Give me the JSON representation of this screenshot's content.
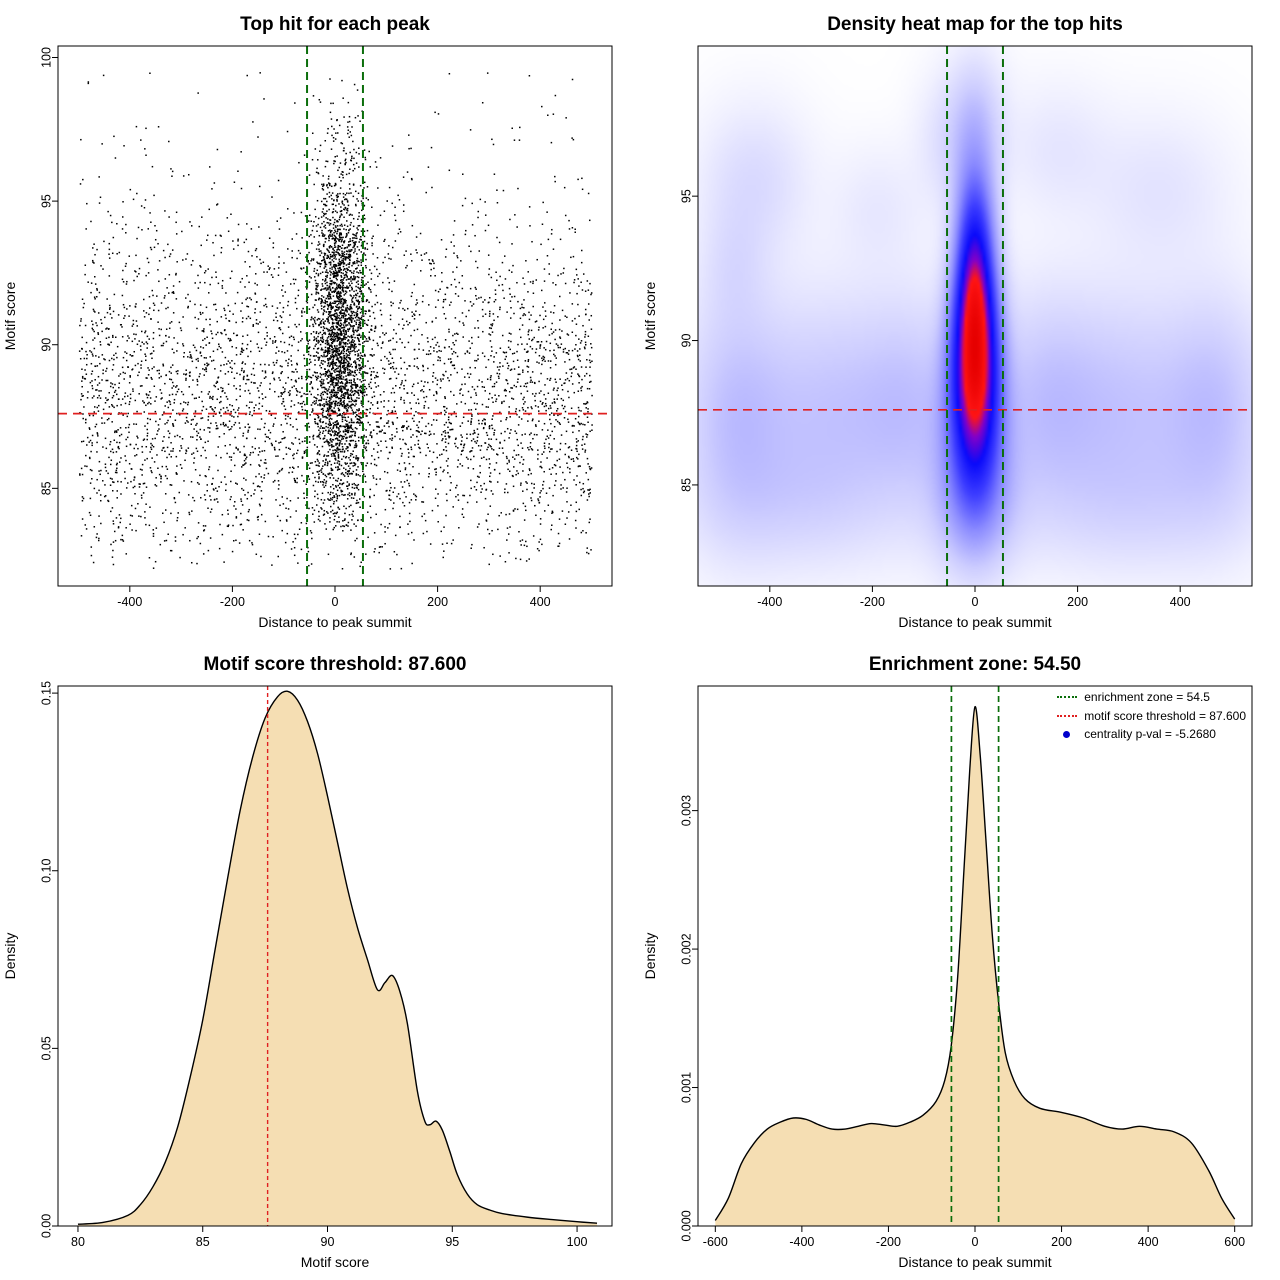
{
  "figure": {
    "background": "#ffffff",
    "score_threshold": 87.6,
    "enrichment_zone": 54.5,
    "centrality_pval": "-5.2680"
  },
  "chart_data": [
    {
      "type": "scatter",
      "title": "Top hit for each peak",
      "xlabel": "Distance to peak summit",
      "ylabel": "Motif score",
      "xlim": [
        -540,
        540
      ],
      "ylim": [
        81.6,
        100.4
      ],
      "xticks": [
        -400,
        -200,
        0,
        200,
        400
      ],
      "yticks": [
        85,
        90,
        95,
        100
      ],
      "point_color": "#000000",
      "threshold_line": {
        "y": 87.6,
        "color": "#e02020",
        "dash": [
          9,
          6
        ],
        "width": 1.8
      },
      "zone_lines": {
        "x": [
          -54.5,
          54.5
        ],
        "color": "#0b6e0b",
        "dash": [
          8,
          5
        ],
        "width": 2
      },
      "points": {
        "seed": 1234,
        "x_range": [
          -500,
          500
        ],
        "background": {
          "n": 4300,
          "y_mean": 88.2,
          "y_sd": 3.1,
          "y_uniform_frac": 0.07,
          "y_min": 82.2,
          "y_max": 99.7
        },
        "cluster": {
          "n": 2700,
          "x_mean": 8,
          "x_sd": 27,
          "y_mean": 90.2,
          "y_sd": 3.1,
          "y_min": 83.6,
          "y_max": 99.5
        }
      }
    },
    {
      "type": "heatmap",
      "title": "Density heat map for the top hits",
      "xlabel": "Distance to peak summit",
      "ylabel": "Motif score",
      "xlim": [
        -540,
        540
      ],
      "ylim": [
        81.5,
        100.2
      ],
      "xticks": [
        -400,
        -200,
        0,
        200,
        400
      ],
      "yticks": [
        85,
        90,
        95
      ],
      "threshold_line": {
        "y": 87.6,
        "color": "#e02020",
        "dash": [
          9,
          6
        ],
        "width": 1.6
      },
      "zone_lines": {
        "x": [
          -54.5,
          54.5
        ],
        "color": "#0b6e0b",
        "dash": [
          8,
          5
        ],
        "width": 2
      },
      "colormap": [
        [
          0.0,
          "#ffffff"
        ],
        [
          0.06,
          "#f0f0ff"
        ],
        [
          0.18,
          "#cdcdff"
        ],
        [
          0.35,
          "#8c8cff"
        ],
        [
          0.52,
          "#3c3cff"
        ],
        [
          0.66,
          "#0a0afa"
        ],
        [
          0.78,
          "#8200c8"
        ],
        [
          0.86,
          "#ff1414"
        ],
        [
          1.0,
          "#e60000"
        ]
      ],
      "kernels": [
        {
          "x": 0,
          "y": 89.3,
          "sx": 30,
          "sy": 2.4,
          "w": 1.1
        },
        {
          "x": 0,
          "y": 90.8,
          "sx": 27,
          "sy": 2.0,
          "w": 0.9
        },
        {
          "x": 0,
          "y": 92.4,
          "sx": 22,
          "sy": 1.5,
          "w": 0.6
        },
        {
          "x": 0,
          "y": 88.2,
          "sx": 34,
          "sy": 2.2,
          "w": 0.7
        },
        {
          "x": 0,
          "y": 86.3,
          "sx": 42,
          "sy": 2.0,
          "w": 0.4
        },
        {
          "x": 0,
          "y": 84.3,
          "sx": 55,
          "sy": 1.6,
          "w": 0.28
        },
        {
          "x": 0,
          "y": 94.3,
          "sx": 24,
          "sy": 1.3,
          "w": 0.35
        },
        {
          "x": 0,
          "y": 96.0,
          "sx": 30,
          "sy": 1.8,
          "w": 0.25
        },
        {
          "x": 0,
          "y": 97.8,
          "sx": 40,
          "sy": 1.5,
          "w": 0.12
        },
        {
          "x": -120,
          "y": 87.7,
          "sx": 70,
          "sy": 2.5,
          "w": 0.18
        },
        {
          "x": 130,
          "y": 87.8,
          "sx": 70,
          "sy": 2.5,
          "w": 0.18
        },
        {
          "x": -280,
          "y": 87.6,
          "sx": 110,
          "sy": 2.6,
          "w": 0.22
        },
        {
          "x": 280,
          "y": 87.7,
          "sx": 110,
          "sy": 2.6,
          "w": 0.22
        },
        {
          "x": -470,
          "y": 87.4,
          "sx": 70,
          "sy": 2.8,
          "w": 0.22
        },
        {
          "x": 470,
          "y": 87.6,
          "sx": 70,
          "sy": 2.6,
          "w": 0.22
        },
        {
          "x": -350,
          "y": 84.3,
          "sx": 130,
          "sy": 1.5,
          "w": 0.1
        },
        {
          "x": 320,
          "y": 84.2,
          "sx": 150,
          "sy": 1.5,
          "w": 0.1
        },
        {
          "x": -430,
          "y": 95.5,
          "sx": 70,
          "sy": 1.7,
          "w": 0.12
        },
        {
          "x": -470,
          "y": 92.6,
          "sx": 45,
          "sy": 1.4,
          "w": 0.08
        },
        {
          "x": 360,
          "y": 95.2,
          "sx": 90,
          "sy": 1.7,
          "w": 0.08
        },
        {
          "x": -190,
          "y": 94.6,
          "sx": 60,
          "sy": 1.4,
          "w": 0.06
        },
        {
          "x": 160,
          "y": 96.6,
          "sx": 70,
          "sy": 1.5,
          "w": 0.07
        },
        {
          "x": -60,
          "y": 96.8,
          "sx": 40,
          "sy": 1.5,
          "w": 0.08
        }
      ]
    },
    {
      "type": "density",
      "title": "Motif score threshold: 87.600",
      "xlabel": "Motif score",
      "ylabel": "Density",
      "xlim": [
        79.2,
        101.4
      ],
      "ylim": [
        0,
        0.152
      ],
      "xticks": [
        80,
        85,
        90,
        95,
        100
      ],
      "yticks": [
        0,
        0.05,
        0.1,
        0.15
      ],
      "ytick_labels": [
        "0.00",
        "0.05",
        "0.10",
        "0.15"
      ],
      "fill": "#f5deb3",
      "line": "#000000",
      "vlines": [
        {
          "x": 87.6,
          "color": "#e02020",
          "dash": [
            4,
            3
          ],
          "width": 1.4
        }
      ],
      "x": [
        80,
        81,
        82,
        82.5,
        83,
        83.5,
        84,
        84.5,
        85,
        85.5,
        86,
        86.5,
        87,
        87.5,
        88,
        88.4,
        88.8,
        89.2,
        89.6,
        90,
        90.4,
        90.8,
        91.2,
        91.6,
        92,
        92.3,
        92.6,
        92.9,
        93.2,
        93.6,
        93.9,
        94.1,
        94.35,
        94.6,
        94.9,
        95.2,
        95.6,
        96,
        96.5,
        97,
        98,
        99,
        100,
        100.8
      ],
      "y": [
        0.0005,
        0.001,
        0.003,
        0.006,
        0.011,
        0.018,
        0.028,
        0.042,
        0.058,
        0.078,
        0.098,
        0.117,
        0.132,
        0.143,
        0.149,
        0.1505,
        0.148,
        0.142,
        0.133,
        0.121,
        0.108,
        0.095,
        0.084,
        0.075,
        0.0665,
        0.0685,
        0.0705,
        0.066,
        0.057,
        0.038,
        0.0295,
        0.0285,
        0.0295,
        0.027,
        0.021,
        0.0145,
        0.009,
        0.006,
        0.0045,
        0.0035,
        0.0025,
        0.0018,
        0.0012,
        0.0008
      ]
    },
    {
      "type": "density",
      "title": "Enrichment zone: 54.50",
      "xlabel": "Distance to peak summit",
      "ylabel": "Density",
      "xlim": [
        -640,
        640
      ],
      "ylim": [
        0,
        0.0039
      ],
      "xticks": [
        -600,
        -400,
        -200,
        0,
        200,
        400,
        600
      ],
      "yticks": [
        0,
        0.001,
        0.002,
        0.003
      ],
      "ytick_labels": [
        "0.000",
        "0.001",
        "0.002",
        "0.003"
      ],
      "fill": "#f5deb3",
      "line": "#000000",
      "vlines": [
        {
          "x": -54.5,
          "color": "#0b6e0b",
          "dash": [
            6,
            4
          ],
          "width": 1.7
        },
        {
          "x": 54.5,
          "color": "#0b6e0b",
          "dash": [
            6,
            4
          ],
          "width": 1.7
        }
      ],
      "x": [
        -600,
        -570,
        -540,
        -510,
        -480,
        -450,
        -420,
        -390,
        -360,
        -330,
        -300,
        -270,
        -240,
        -210,
        -180,
        -150,
        -120,
        -90,
        -70,
        -55,
        -40,
        -25,
        -12,
        0,
        12,
        25,
        40,
        55,
        70,
        90,
        115,
        150,
        200,
        250,
        300,
        340,
        380,
        420,
        460,
        500,
        540,
        570,
        600
      ],
      "y": [
        4e-05,
        0.0002,
        0.00045,
        0.0006,
        0.0007,
        0.00075,
        0.00078,
        0.00077,
        0.00073,
        0.0007,
        0.0007,
        0.00072,
        0.00074,
        0.00073,
        0.00072,
        0.00075,
        0.0008,
        0.0009,
        0.00105,
        0.0013,
        0.0018,
        0.0026,
        0.0033,
        0.00375,
        0.0034,
        0.0028,
        0.0021,
        0.0016,
        0.00125,
        0.00105,
        0.00092,
        0.00085,
        0.00082,
        0.00078,
        0.00072,
        0.0007,
        0.00072,
        0.0007,
        0.00068,
        0.0006,
        0.0004,
        0.0002,
        5e-05
      ],
      "legend": [
        {
          "label": "enrichment zone = 54.5",
          "symbol": "dotted-line",
          "color": "#0b6e0b"
        },
        {
          "label": "motif score threshold = 87.600",
          "symbol": "dotted-line",
          "color": "#e02020"
        },
        {
          "label": "centrality p-val = -5.2680",
          "symbol": "dot",
          "color": "#0000cc"
        }
      ]
    }
  ]
}
